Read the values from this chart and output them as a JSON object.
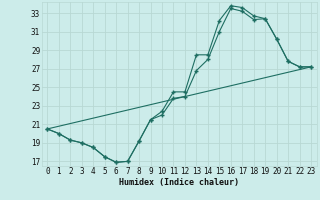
{
  "xlabel": "Humidex (Indice chaleur)",
  "bg_color": "#ccecea",
  "grid_color": "#b8d8d4",
  "line_color": "#1e6e62",
  "xlim": [
    -0.5,
    23.5
  ],
  "ylim": [
    16.5,
    34.2
  ],
  "xticks": [
    0,
    1,
    2,
    3,
    4,
    5,
    6,
    7,
    8,
    9,
    10,
    11,
    12,
    13,
    14,
    15,
    16,
    17,
    18,
    19,
    20,
    21,
    22,
    23
  ],
  "yticks": [
    17,
    19,
    21,
    23,
    25,
    27,
    29,
    31,
    33
  ],
  "curve1_x": [
    0,
    1,
    2,
    3,
    4,
    5,
    6,
    7,
    8,
    9,
    10,
    11,
    12,
    13,
    14,
    15,
    16,
    17,
    18,
    19,
    20,
    21,
    22,
    23
  ],
  "curve1_y": [
    20.5,
    20.0,
    19.3,
    19.0,
    18.5,
    17.5,
    16.9,
    17.0,
    19.2,
    21.5,
    22.0,
    23.8,
    24.0,
    26.8,
    28.0,
    31.0,
    33.5,
    33.2,
    32.3,
    32.4,
    30.2,
    27.8,
    27.2,
    27.2
  ],
  "curve2_x": [
    0,
    1,
    2,
    3,
    4,
    5,
    6,
    7,
    8,
    9,
    10,
    11,
    12,
    13,
    14,
    15,
    16,
    17,
    18,
    19,
    20,
    21,
    22,
    23
  ],
  "curve2_y": [
    20.5,
    20.0,
    19.3,
    19.0,
    18.5,
    17.5,
    16.9,
    17.0,
    19.2,
    21.5,
    22.4,
    24.5,
    24.5,
    28.5,
    28.5,
    32.2,
    33.8,
    33.6,
    32.7,
    32.4,
    30.2,
    27.8,
    27.2,
    27.2
  ],
  "line_x": [
    0,
    23
  ],
  "line_y": [
    20.5,
    27.2
  ]
}
